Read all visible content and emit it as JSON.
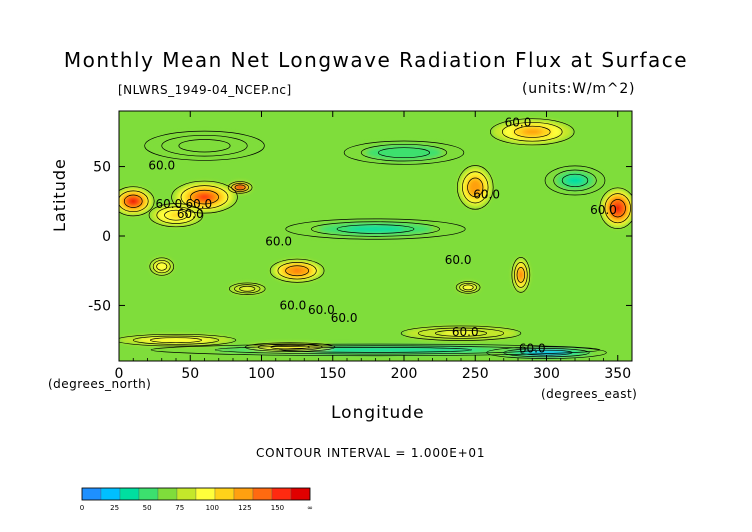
{
  "chart_data": {
    "type": "heatmap",
    "title": "Monthly Mean Net Longwave Radiation Flux at Surface",
    "file_label": "[NLWRS_1949-04_NCEP.nc]",
    "units_label": "(units:W/m^2)",
    "xlabel": "Longitude",
    "ylabel": "Latitude",
    "x_units": "(degrees_east)",
    "y_units": "(degrees_north)",
    "xlim": [
      0,
      360
    ],
    "ylim": [
      -90,
      90
    ],
    "x_ticks": [
      0,
      50,
      100,
      150,
      200,
      250,
      300,
      350
    ],
    "y_ticks": [
      50,
      0,
      -50
    ],
    "contour_interval": "CONTOUR INTERVAL = 1.000E+01",
    "contour_labels": [
      {
        "text": "60.0",
        "lon": 30,
        "lat": 48
      },
      {
        "text": "60.0",
        "lon": 35,
        "lat": 20
      },
      {
        "text": "60.0",
        "lon": 56,
        "lat": 20
      },
      {
        "text": "60.0",
        "lon": 50,
        "lat": 13
      },
      {
        "text": "60.0",
        "lon": 280,
        "lat": 79
      },
      {
        "text": "60.0",
        "lon": 258,
        "lat": 27
      },
      {
        "text": "60.0",
        "lon": 340,
        "lat": 16
      },
      {
        "text": "60.0",
        "lon": 112,
        "lat": -7
      },
      {
        "text": "60.0",
        "lon": 238,
        "lat": -20
      },
      {
        "text": "60.0",
        "lon": 122,
        "lat": -53
      },
      {
        "text": "60.0",
        "lon": 142,
        "lat": -56
      },
      {
        "text": "60.0",
        "lon": 158,
        "lat": -62
      },
      {
        "text": "60.0",
        "lon": 243,
        "lat": -72
      },
      {
        "text": "60.0",
        "lon": 290,
        "lat": -84
      }
    ],
    "colorbar": {
      "ticks": [
        "0",
        "25",
        "50",
        "75",
        "100",
        "125",
        "150",
        "∞"
      ],
      "colors": [
        "#1e90ff",
        "#00bfff",
        "#00dfa0",
        "#3ce06e",
        "#7fdd3b",
        "#c4e82a",
        "#ffff3b",
        "#ffd21a",
        "#ffa010",
        "#ff6a10",
        "#ff2a10",
        "#e00000"
      ]
    },
    "regions": [
      {
        "lon": 10,
        "lat": 25,
        "rx": 14,
        "ry": 10,
        "value": 140
      },
      {
        "lon": 60,
        "lat": 28,
        "rx": 22,
        "ry": 11,
        "value": 125
      },
      {
        "lon": 85,
        "lat": 35,
        "rx": 8,
        "ry": 4,
        "value": 160
      },
      {
        "lon": 40,
        "lat": 15,
        "rx": 18,
        "ry": 8,
        "value": 95
      },
      {
        "lon": 350,
        "lat": 20,
        "rx": 12,
        "ry": 14,
        "value": 145
      },
      {
        "lon": 250,
        "lat": 35,
        "rx": 12,
        "ry": 15,
        "value": 110
      },
      {
        "lon": 290,
        "lat": 75,
        "rx": 28,
        "ry": 9,
        "value": 100
      },
      {
        "lon": 125,
        "lat": -25,
        "rx": 18,
        "ry": 8,
        "value": 120
      },
      {
        "lon": 30,
        "lat": -22,
        "rx": 8,
        "ry": 6,
        "value": 85
      },
      {
        "lon": 282,
        "lat": -28,
        "rx": 6,
        "ry": 12,
        "value": 115
      },
      {
        "lon": 245,
        "lat": -37,
        "rx": 8,
        "ry": 4,
        "value": 85
      },
      {
        "lon": 90,
        "lat": -38,
        "rx": 12,
        "ry": 4,
        "value": 80
      },
      {
        "lon": 180,
        "lat": 5,
        "rx": 60,
        "ry": 7,
        "value": 35
      },
      {
        "lon": 200,
        "lat": 60,
        "rx": 40,
        "ry": 8,
        "value": 38
      },
      {
        "lon": 60,
        "lat": 65,
        "rx": 40,
        "ry": 10,
        "value": 50
      },
      {
        "lon": 320,
        "lat": 40,
        "rx": 20,
        "ry": 10,
        "value": 35
      },
      {
        "lon": 180,
        "lat": -82,
        "rx": 150,
        "ry": 4,
        "value": 28
      },
      {
        "lon": 300,
        "lat": -84,
        "rx": 40,
        "ry": 4,
        "value": 15
      },
      {
        "lon": 120,
        "lat": -80,
        "rx": 30,
        "ry": 3,
        "value": 95
      },
      {
        "lon": 40,
        "lat": -75,
        "rx": 40,
        "ry": 4,
        "value": 85
      },
      {
        "lon": 240,
        "lat": -70,
        "rx": 40,
        "ry": 5,
        "value": 80
      }
    ]
  }
}
